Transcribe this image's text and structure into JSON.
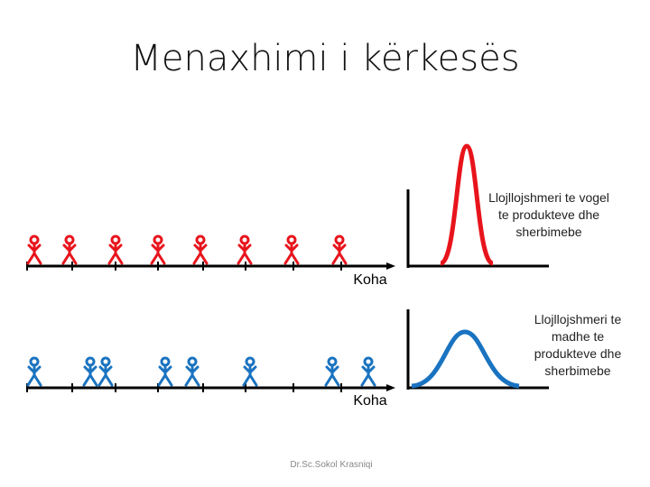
{
  "title": "Menaxhimi i kërkesës",
  "panels": [
    {
      "label": "Llojllojshmeri te vogel te produkteve dhe sherbimebe",
      "axis_label": "Koha"
    },
    {
      "label": "Llojllojshmeri te madhe te produkteve dhe sherbimebe",
      "axis_label": "Koha"
    }
  ],
  "footer": "Dr.Sc.Sokol Krasniqi"
}
